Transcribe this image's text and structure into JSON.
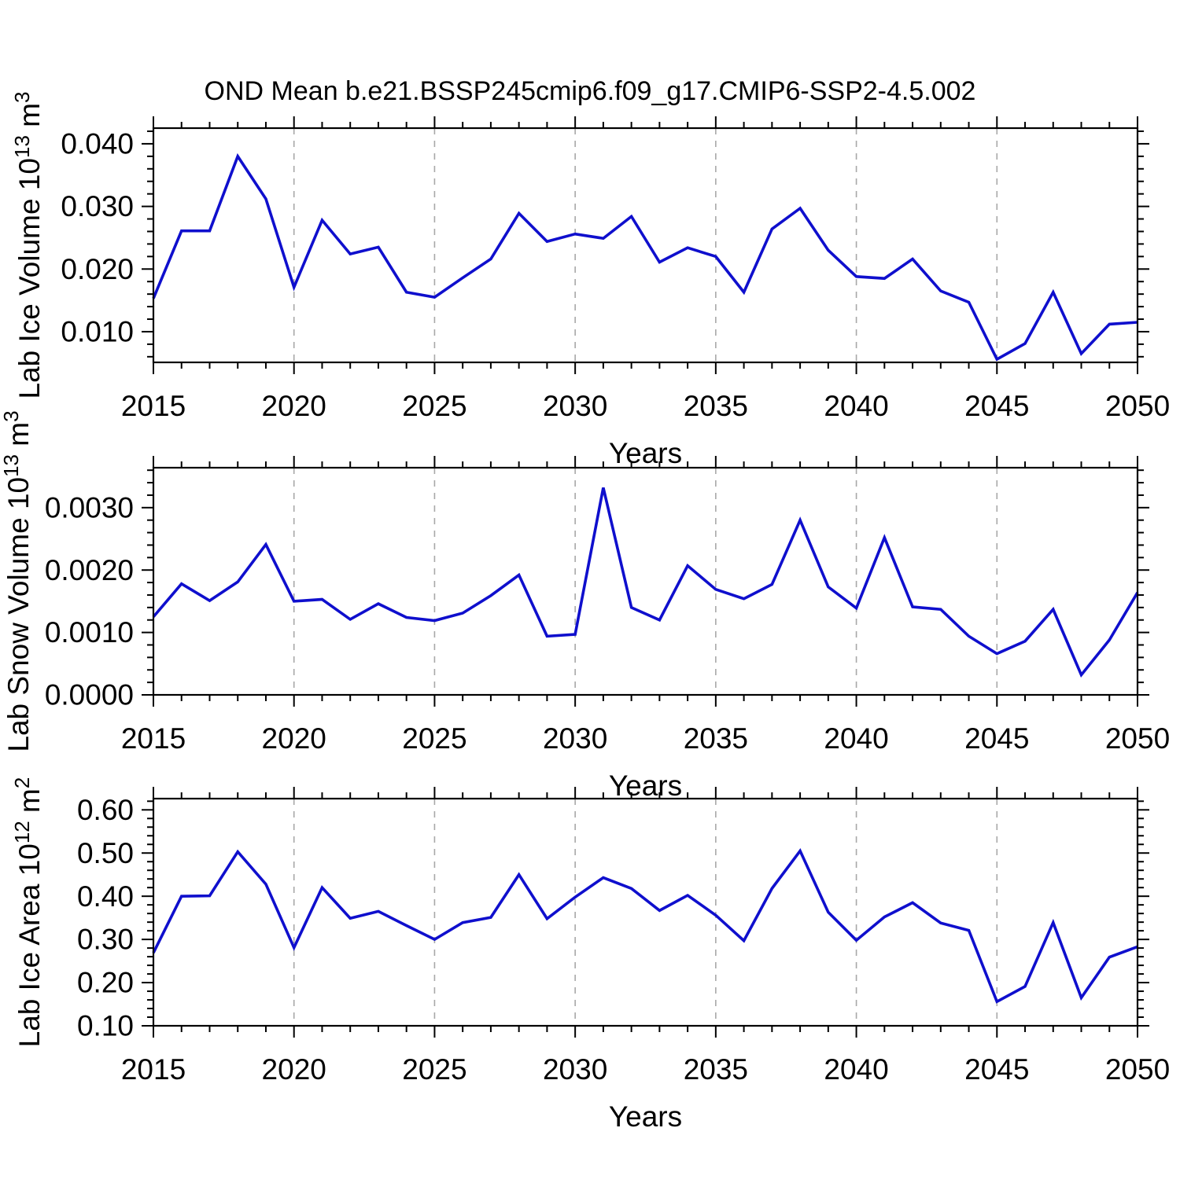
{
  "title": "OND Mean b.e21.BSSP245cmip6.f09_g17.CMIP6-SSP2-4.5.002",
  "chart_data": {
    "type": "line",
    "title": "OND Mean b.e21.BSSP245cmip6.f09_g17.CMIP6-SSP2-4.5.002",
    "xlabel": "Years",
    "line_color": "#0f0fcd",
    "grid_color": "#a8a8a8",
    "frame_color": "#000000",
    "legend": "none",
    "grid_on": true,
    "grid_x_years": [
      2020,
      2025,
      2030,
      2035,
      2040,
      2045
    ],
    "x": [
      2015,
      2016,
      2017,
      2018,
      2019,
      2020,
      2021,
      2022,
      2023,
      2024,
      2025,
      2026,
      2027,
      2028,
      2029,
      2030,
      2031,
      2032,
      2033,
      2034,
      2035,
      2036,
      2037,
      2038,
      2039,
      2040,
      2041,
      2042,
      2043,
      2044,
      2045,
      2046,
      2047,
      2048,
      2049,
      2050
    ],
    "xlim": [
      2015,
      2050
    ],
    "x_major_tick_step": 5,
    "x_minor_tick_step": 1,
    "x_major_tick_labels": [
      "2015",
      "2020",
      "2025",
      "2030",
      "2035",
      "2040",
      "2045",
      "2050"
    ],
    "panels": [
      {
        "id": "ice-volume",
        "ylabel_segments": [
          {
            "t": "Lab Ice Volume 10"
          },
          {
            "t": "13",
            "sup": true
          },
          {
            "t": " m"
          },
          {
            "t": "3",
            "sup": true
          }
        ],
        "ylim": [
          0.0051,
          0.0425
        ],
        "yticks": [
          0.01,
          0.02,
          0.03,
          0.04
        ],
        "ytick_labels": [
          "0.010",
          "0.020",
          "0.030",
          "0.040"
        ],
        "y_minor_step": 0.002,
        "values": [
          0.0153,
          0.0261,
          0.0261,
          0.038,
          0.0312,
          0.0171,
          0.0278,
          0.0224,
          0.0235,
          0.0163,
          0.0155,
          0.0186,
          0.0216,
          0.0289,
          0.0244,
          0.0256,
          0.0249,
          0.0284,
          0.0211,
          0.0234,
          0.022,
          0.0163,
          0.0264,
          0.0297,
          0.023,
          0.0188,
          0.0185,
          0.0216,
          0.0165,
          0.0147,
          0.0056,
          0.0081,
          0.0163,
          0.0065,
          0.0112,
          0.0115
        ]
      },
      {
        "id": "snow-volume",
        "ylabel_segments": [
          {
            "t": "Lab Snow Volume 10"
          },
          {
            "t": "13",
            "sup": true
          },
          {
            "t": " m"
          },
          {
            "t": "3",
            "sup": true
          }
        ],
        "ylim": [
          0.0,
          0.00364
        ],
        "yticks": [
          0.0,
          0.001,
          0.002,
          0.003
        ],
        "ytick_labels": [
          "0.0000",
          "0.0010",
          "0.0020",
          "0.0030"
        ],
        "y_minor_step": 0.0002,
        "values": [
          0.00125,
          0.00178,
          0.00151,
          0.00181,
          0.00241,
          0.0015,
          0.00153,
          0.00121,
          0.00146,
          0.00124,
          0.00119,
          0.00131,
          0.00159,
          0.00192,
          0.00094,
          0.00097,
          0.00332,
          0.0014,
          0.0012,
          0.00207,
          0.00169,
          0.00154,
          0.00177,
          0.0028,
          0.00173,
          0.00139,
          0.00252,
          0.00141,
          0.00137,
          0.00094,
          0.00066,
          0.00086,
          0.00137,
          0.00032,
          0.00088,
          0.00164
        ]
      },
      {
        "id": "ice-area",
        "ylabel_segments": [
          {
            "t": "Lab Ice Area 10"
          },
          {
            "t": "12",
            "sup": true
          },
          {
            "t": " m"
          },
          {
            "t": "2",
            "sup": true
          }
        ],
        "ylim": [
          0.1,
          0.626
        ],
        "yticks": [
          0.1,
          0.2,
          0.3,
          0.4,
          0.5,
          0.6
        ],
        "ytick_labels": [
          "0.10",
          "0.20",
          "0.30",
          "0.40",
          "0.50",
          "0.60"
        ],
        "y_minor_step": 0.02,
        "values": [
          0.269,
          0.4,
          0.401,
          0.503,
          0.428,
          0.281,
          0.42,
          0.349,
          0.365,
          0.332,
          0.3,
          0.339,
          0.351,
          0.45,
          0.348,
          0.398,
          0.443,
          0.418,
          0.367,
          0.402,
          0.356,
          0.297,
          0.418,
          0.505,
          0.363,
          0.298,
          0.352,
          0.385,
          0.338,
          0.321,
          0.156,
          0.191,
          0.339,
          0.165,
          0.259,
          0.283
        ]
      }
    ]
  }
}
